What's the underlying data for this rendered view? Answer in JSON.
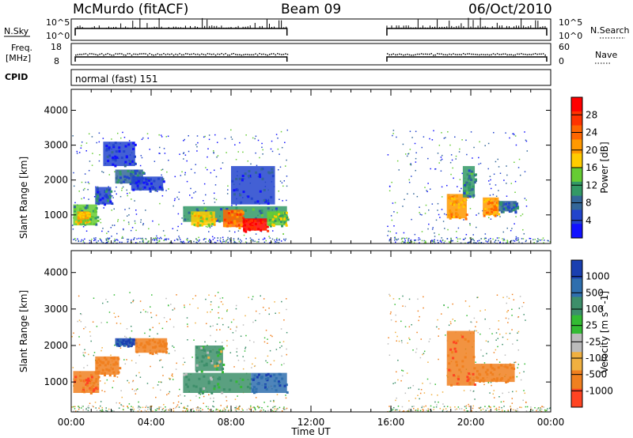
{
  "header": {
    "station": "McMurdo (fitACF)",
    "beam": "Beam 09",
    "date": "06/Oct/2010"
  },
  "left_labels": {
    "nsky": "N.Sky",
    "freq": "Freq.",
    "freq_unit": "[MHz]",
    "cpid": "CPID",
    "cpid_value": "normal (fast) 151"
  },
  "right_labels": {
    "nsearch": "N.Search",
    "nave": "Nave"
  },
  "nsky_ticks": [
    "10^5",
    "10^0"
  ],
  "freq_ticks": [
    "18",
    "8"
  ],
  "nave_ticks": [
    "60",
    "0"
  ],
  "xlabel": "Time UT",
  "ylabel": "Slant Range [km]",
  "power_cb": {
    "label": "Power [dB]",
    "ticks": [
      "28",
      "24",
      "20",
      "16",
      "12",
      "8",
      "4"
    ],
    "colors": [
      "#ff0000",
      "#ff3300",
      "#ff6600",
      "#ff9900",
      "#ffcc00",
      "#66cc33",
      "#339966",
      "#336699",
      "#2244cc",
      "#1111ff"
    ]
  },
  "velocity_cb": {
    "label": "Velocity [m s^-1]",
    "ticks": [
      "1000",
      "500",
      "100",
      "25",
      "-25",
      "-100",
      "-500",
      "-1000"
    ],
    "colors": [
      "#1a3fb0",
      "#2f6fae",
      "#3d8f6a",
      "#33bb33",
      "#bbbbbb",
      "#f0b040",
      "#f08020",
      "#ff4422"
    ]
  },
  "chart_data": {
    "type": "heatmap",
    "x_ticks": [
      "00:00",
      "04:00",
      "08:00",
      "12:00",
      "16:00",
      "20:00",
      "00:00"
    ],
    "x_range_hours": [
      0,
      24
    ],
    "y_ticks": [
      "1000",
      "2000",
      "3000",
      "4000"
    ],
    "y_range_km": [
      180,
      4600
    ],
    "data_gap_hours": [
      10.8,
      15.8
    ],
    "power_regions": [
      {
        "t0": 0.1,
        "t1": 1.3,
        "r0": 700,
        "r1": 1300,
        "db": 12
      },
      {
        "t0": 0.3,
        "t1": 0.9,
        "r0": 800,
        "r1": 1100,
        "db": 18
      },
      {
        "t0": 1.2,
        "t1": 2.0,
        "r0": 1300,
        "r1": 1800,
        "db": 6
      },
      {
        "t0": 1.6,
        "t1": 3.2,
        "r0": 2400,
        "r1": 3100,
        "db": 4
      },
      {
        "t0": 2.2,
        "t1": 3.6,
        "r0": 1900,
        "r1": 2300,
        "db": 8
      },
      {
        "t0": 3.0,
        "t1": 4.6,
        "r0": 1700,
        "r1": 2100,
        "db": 5
      },
      {
        "t0": 5.6,
        "t1": 10.8,
        "r0": 800,
        "r1": 1250,
        "db": 9
      },
      {
        "t0": 6.0,
        "t1": 7.2,
        "r0": 700,
        "r1": 1100,
        "db": 16
      },
      {
        "t0": 7.6,
        "t1": 8.6,
        "r0": 650,
        "r1": 1150,
        "db": 22
      },
      {
        "t0": 8.6,
        "t1": 9.8,
        "r0": 550,
        "r1": 900,
        "db": 28
      },
      {
        "t0": 9.8,
        "t1": 10.8,
        "r0": 700,
        "r1": 1100,
        "db": 14
      },
      {
        "t0": 8.0,
        "t1": 10.2,
        "r0": 1300,
        "r1": 2400,
        "db": 5
      },
      {
        "t0": 18.8,
        "t1": 19.8,
        "r0": 900,
        "r1": 1600,
        "db": 20
      },
      {
        "t0": 19.6,
        "t1": 20.2,
        "r0": 1500,
        "r1": 2400,
        "db": 10
      },
      {
        "t0": 20.6,
        "t1": 21.4,
        "r0": 1000,
        "r1": 1500,
        "db": 20
      },
      {
        "t0": 21.4,
        "t1": 22.3,
        "r0": 1100,
        "r1": 1400,
        "db": 8
      }
    ],
    "velocity_regions": [
      {
        "t0": 0.1,
        "t1": 1.4,
        "r0": 700,
        "r1": 1300,
        "v": -500
      },
      {
        "t0": 1.2,
        "t1": 2.4,
        "r0": 1200,
        "r1": 1700,
        "v": -300
      },
      {
        "t0": 2.2,
        "t1": 3.2,
        "r0": 2000,
        "r1": 2200,
        "v": 800
      },
      {
        "t0": 3.2,
        "t1": 4.8,
        "r0": 1800,
        "r1": 2200,
        "v": -300
      },
      {
        "t0": 5.6,
        "t1": 9.0,
        "r0": 700,
        "r1": 1250,
        "v": 100
      },
      {
        "t0": 9.0,
        "t1": 10.8,
        "r0": 700,
        "r1": 1250,
        "v": 700
      },
      {
        "t0": 6.2,
        "t1": 7.6,
        "r0": 1300,
        "r1": 2000,
        "v": 60
      },
      {
        "t0": 18.8,
        "t1": 20.2,
        "r0": 900,
        "r1": 2400,
        "v": -500
      },
      {
        "t0": 20.2,
        "t1": 22.2,
        "r0": 1000,
        "r1": 1500,
        "v": -200
      }
    ]
  }
}
